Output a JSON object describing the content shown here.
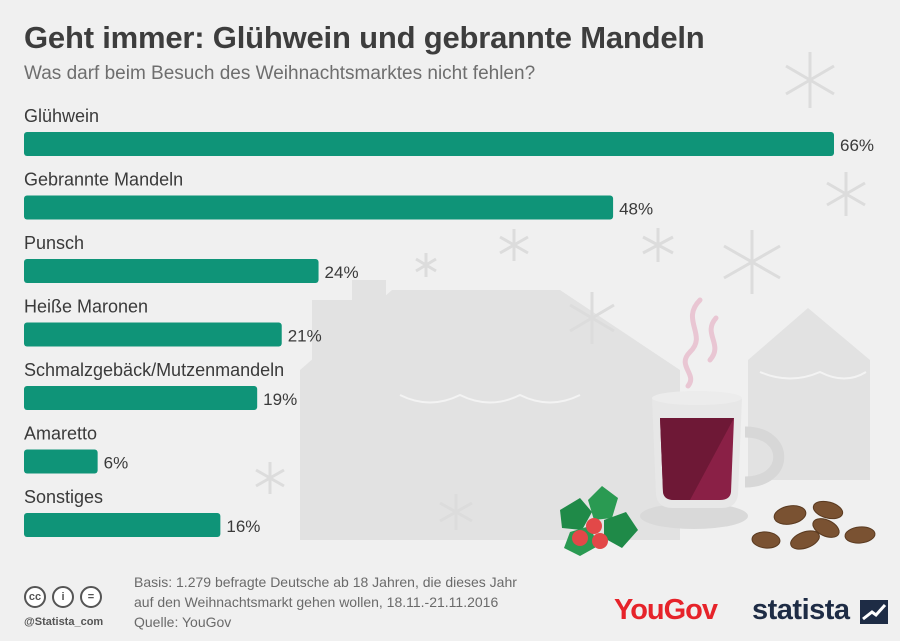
{
  "title": "Geht immer: Glühwein und gebrannte Mandeln",
  "subtitle": "Was darf beim Besuch des Weihnachtsmarktes nicht fehlen?",
  "colors": {
    "bar": "#0f9478",
    "text": "#3a3a3a"
  },
  "chart_data": {
    "type": "bar",
    "orientation": "horizontal",
    "categories": [
      "Glühwein",
      "Gebrannte Mandeln",
      "Punsch",
      "Heiße Maronen",
      "Schmalzgebäck/Mutzenmandeln",
      "Amaretto",
      "Sonstiges"
    ],
    "values": [
      66,
      48,
      24,
      21,
      19,
      6,
      16
    ],
    "value_labels": [
      "66%",
      "48%",
      "24%",
      "21%",
      "19%",
      "6%",
      "16%"
    ],
    "unit": "%",
    "xlim": [
      0,
      66
    ],
    "grid": false
  },
  "footer": {
    "source_line1": "Basis: 1.279 befragte Deutsche ab 18 Jahren, die dieses Jahr",
    "source_line2": "auf den Weihnachtsmarkt gehen wollen, 18.11.-21.11.2016",
    "source_line3": "Quelle: YouGov",
    "handle": "@Statista_com",
    "yougov_logo": "YouGov",
    "statista_logo": "statista",
    "cc_icons": [
      "cc",
      "i",
      "="
    ]
  }
}
